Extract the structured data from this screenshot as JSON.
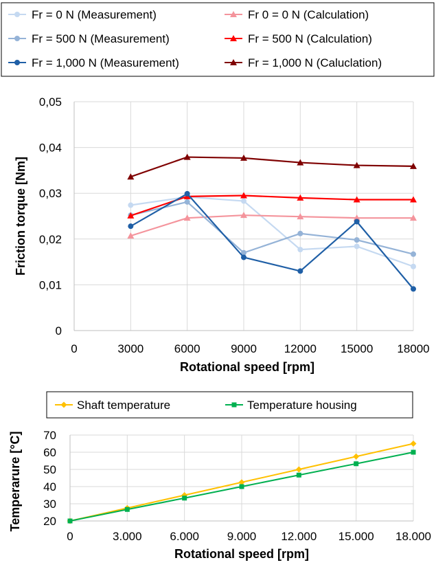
{
  "chart_data": [
    {
      "type": "line",
      "title": "",
      "xlabel": "Rotational speed [rpm]",
      "ylabel": "Friction torque [Nm]",
      "x": [
        3000,
        6000,
        9000,
        12000,
        15000,
        18000
      ],
      "x_tick_labels": [
        "0",
        "3000",
        "6000",
        "9000",
        "12000",
        "15000",
        "18000"
      ],
      "y_tick_labels": [
        "0",
        "0,01",
        "0,02",
        "0,03",
        "0,04",
        "0,05"
      ],
      "ylim": [
        0,
        0.05
      ],
      "grid": true,
      "legend_position": "top",
      "series": [
        {
          "name": "Fr = 0 N (Measurement)",
          "marker": "circle",
          "color": "#c5d9f1",
          "values": [
            0.0274,
            0.0292,
            0.0283,
            0.0177,
            0.0184,
            0.014
          ]
        },
        {
          "name": "Fr 0 = 0 N (Calculation)",
          "marker": "triangle",
          "color": "#f4949c",
          "values": [
            0.0207,
            0.0246,
            0.0252,
            0.0249,
            0.0246,
            0.0246
          ]
        },
        {
          "name": "Fr = 500 N (Measurement)",
          "marker": "circle",
          "color": "#95b3d7",
          "values": [
            0.0252,
            0.0281,
            0.017,
            0.0212,
            0.0198,
            0.0167
          ]
        },
        {
          "name": "Fr = 500 N (Calculation)",
          "marker": "triangle",
          "color": "#ff0000",
          "values": [
            0.0251,
            0.0293,
            0.0295,
            0.029,
            0.0286,
            0.0286
          ]
        },
        {
          "name": "Fr = 1,000 N (Measurement)",
          "marker": "circle",
          "color": "#1f5fa6",
          "values": [
            0.0228,
            0.0299,
            0.016,
            0.013,
            0.0238,
            0.0091
          ]
        },
        {
          "name": "Fr = 1,000 N (Caluclation)",
          "marker": "triangle",
          "color": "#7f0000",
          "values": [
            0.0336,
            0.0379,
            0.0377,
            0.0367,
            0.0361,
            0.0359
          ]
        }
      ]
    },
    {
      "type": "line",
      "title": "",
      "xlabel": "Rotational speed [rpm]",
      "ylabel": "Temperarure [°C]",
      "x": [
        0,
        3000,
        6000,
        9000,
        12000,
        15000,
        18000
      ],
      "x_tick_labels": [
        "0",
        "3.000",
        "6.000",
        "9.000",
        "12.000",
        "15.000",
        "18.000"
      ],
      "y_tick_labels": [
        "20",
        "30",
        "40",
        "50",
        "60",
        "70"
      ],
      "ylim": [
        20,
        70
      ],
      "grid": true,
      "legend_position": "top",
      "series": [
        {
          "name": "Shaft temperature",
          "marker": "diamond",
          "color": "#ffc000",
          "values": [
            20,
            27.5,
            35,
            42.5,
            50,
            57.5,
            65
          ]
        },
        {
          "name": "Temperature housing",
          "marker": "square",
          "color": "#00b050",
          "values": [
            20,
            26.7,
            33.3,
            40,
            46.7,
            53.3,
            60
          ]
        }
      ]
    }
  ]
}
